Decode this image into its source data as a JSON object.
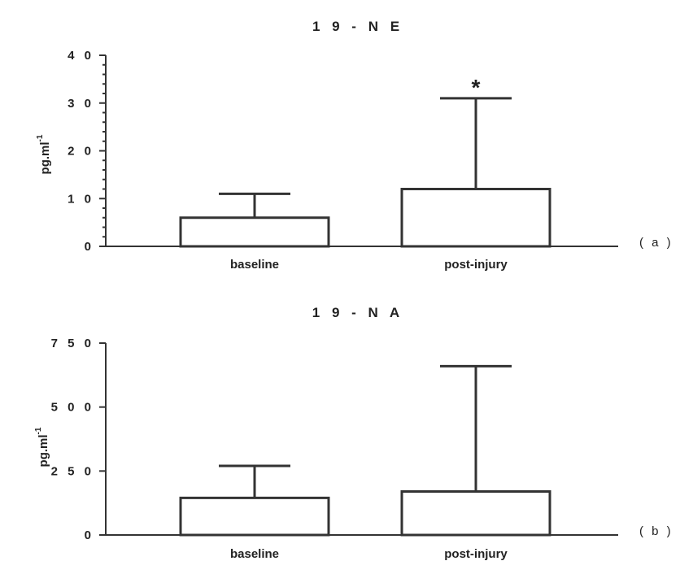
{
  "chart_data": [
    {
      "type": "bar",
      "title": "1 9 - N E",
      "panel_label": "( a )",
      "ylabel": "pg.ml",
      "ylabel_superscript": "-1",
      "ylim": [
        0,
        40
      ],
      "yticks": [
        0,
        10,
        20,
        30,
        40
      ],
      "ytick_labels": [
        "0",
        "1 0",
        "2 0",
        "3 0",
        "4 0"
      ],
      "minor_ticks_per_major": 4,
      "categories": [
        "baseline",
        "post-injury"
      ],
      "values": [
        6,
        12
      ],
      "error_upper": [
        11,
        31
      ],
      "annotations": [
        "",
        "*"
      ]
    },
    {
      "type": "bar",
      "title": "1 9 - N A",
      "panel_label": "( b )",
      "ylabel": "pg.ml",
      "ylabel_superscript": "-1",
      "ylim": [
        0,
        750
      ],
      "yticks": [
        0,
        250,
        500,
        750
      ],
      "ytick_labels": [
        "0",
        "2 5 0",
        "5 0 0",
        "7 5 0"
      ],
      "minor_ticks_per_major": 0,
      "categories": [
        "baseline",
        "post-injury"
      ],
      "values": [
        145,
        170
      ],
      "error_upper": [
        270,
        660
      ],
      "annotations": [
        "",
        ""
      ]
    }
  ]
}
